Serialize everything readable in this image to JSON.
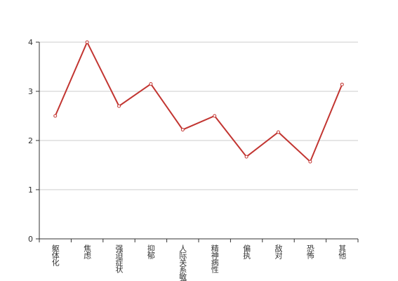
{
  "chart_data": {
    "type": "line",
    "categories": [
      "躯体化",
      "焦虑",
      "强迫症状",
      "抑郁",
      "人际关系敏感",
      "精神病性",
      "偏执",
      "敌对",
      "恐怖",
      "其他"
    ],
    "values": [
      2.5,
      4.0,
      2.7,
      3.15,
      2.22,
      2.5,
      1.67,
      2.17,
      1.57,
      3.14
    ],
    "color": "#c23531",
    "ylim": [
      0,
      4
    ],
    "yticks": [
      0,
      1,
      2,
      3,
      4
    ],
    "grid": true
  }
}
